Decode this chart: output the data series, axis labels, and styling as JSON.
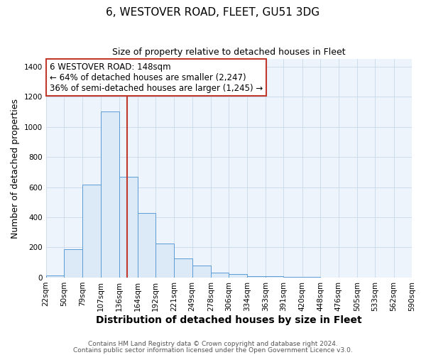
{
  "title": "6, WESTOVER ROAD, FLEET, GU51 3DG",
  "subtitle": "Size of property relative to detached houses in Fleet",
  "xlabel": "Distribution of detached houses by size in Fleet",
  "ylabel": "Number of detached properties",
  "bar_fill_color": "#dce9f7",
  "bar_edge_color": "#5b9bd5",
  "bin_edges": [
    22,
    50,
    79,
    107,
    136,
    164,
    192,
    221,
    249,
    278,
    306,
    334,
    363,
    391,
    420,
    448,
    476,
    505,
    533,
    562,
    590
  ],
  "bar_heights": [
    12,
    190,
    615,
    1100,
    670,
    430,
    225,
    125,
    80,
    35,
    25,
    10,
    10,
    5,
    3,
    2,
    0,
    0,
    0,
    0
  ],
  "tick_labels": [
    "22sqm",
    "50sqm",
    "79sqm",
    "107sqm",
    "136sqm",
    "164sqm",
    "192sqm",
    "221sqm",
    "249sqm",
    "278sqm",
    "306sqm",
    "334sqm",
    "363sqm",
    "391sqm",
    "420sqm",
    "448sqm",
    "476sqm",
    "505sqm",
    "533sqm",
    "562sqm",
    "590sqm"
  ],
  "vline_x": 148,
  "vline_color": "#c0392b",
  "annotation_line1": "6 WESTOVER ROAD: 148sqm",
  "annotation_line2": "← 64% of detached houses are smaller (2,247)",
  "annotation_line3": "36% of semi-detached houses are larger (1,245) →",
  "ylim": [
    0,
    1450
  ],
  "yticks": [
    0,
    200,
    400,
    600,
    800,
    1000,
    1200,
    1400
  ],
  "footer1": "Contains HM Land Registry data © Crown copyright and database right 2024.",
  "footer2": "Contains public sector information licensed under the Open Government Licence v3.0.",
  "background_color": "#ffffff",
  "plot_bg_color": "#eef4fb",
  "grid_color": "#c8d8ea",
  "title_fontsize": 11,
  "subtitle_fontsize": 9,
  "ylabel_fontsize": 9,
  "xlabel_fontsize": 10,
  "tick_fontsize": 7.5,
  "annotation_fontsize": 8.5,
  "footer_fontsize": 6.5
}
